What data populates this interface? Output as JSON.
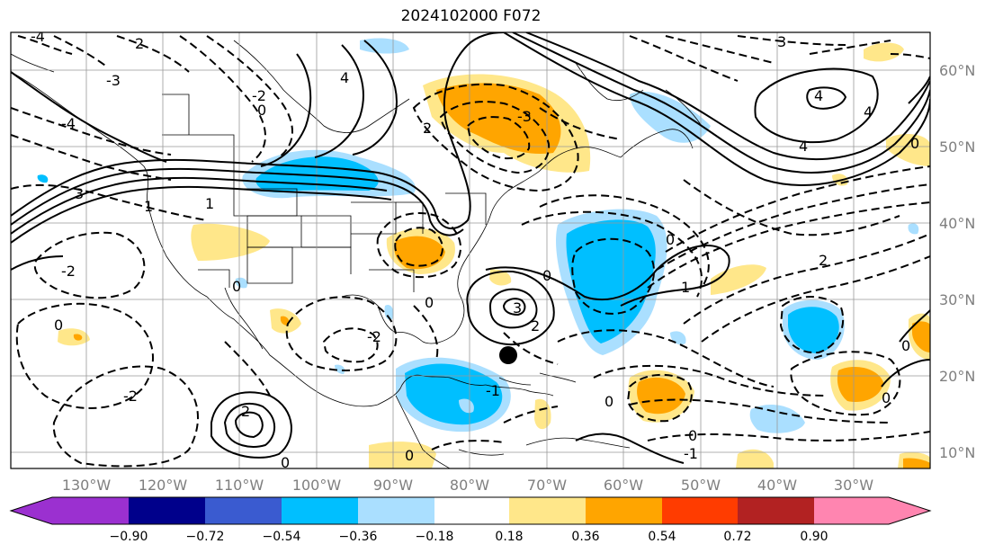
{
  "title": "2024102000 F072",
  "map": {
    "projection": "plate-carree",
    "lon_range": [
      -147,
      12
    ],
    "lat_range": [
      7.5,
      64.5
    ],
    "lat_ticks": [
      {
        "value": 60,
        "label": "60°N"
      },
      {
        "value": 50,
        "label": "50°N"
      },
      {
        "value": 40,
        "label": "40°N"
      },
      {
        "value": 30,
        "label": "30°N"
      },
      {
        "value": 20,
        "label": "20°N"
      },
      {
        "value": 10,
        "label": "10°N"
      }
    ],
    "lon_ticks": [
      {
        "value": -130,
        "label": "130°W"
      },
      {
        "value": -120,
        "label": "120°W"
      },
      {
        "value": -110,
        "label": "110°W"
      },
      {
        "value": -100,
        "label": "100°W"
      },
      {
        "value": -90,
        "label": "90°W"
      },
      {
        "value": -80,
        "label": "80°W"
      },
      {
        "value": -70,
        "label": "70°W"
      },
      {
        "value": -60,
        "label": "60°W"
      },
      {
        "value": -50,
        "label": "50°W"
      },
      {
        "value": -40,
        "label": "40°W"
      },
      {
        "value": -30,
        "label": "30°W"
      }
    ],
    "storm_marker": {
      "lon": -75,
      "lat": 23
    },
    "contour_labels": [
      "0",
      "1",
      "2",
      "3",
      "4",
      "-1",
      "-2",
      "-3",
      "-4"
    ]
  },
  "colorbar": {
    "ticks": [
      "−0.90",
      "−0.72",
      "−0.54",
      "−0.36",
      "−0.18",
      "0.18",
      "0.36",
      "0.54",
      "0.72",
      "0.90"
    ],
    "colors": {
      "under": "#9b30d0",
      "bins": [
        "#00008b",
        "#3a5bd0",
        "#00bfff",
        "#aadfff",
        "#ffffff",
        "#ffe78a",
        "#ffa500",
        "#ff3c00",
        "#b22222"
      ],
      "over": "#ff85b0",
      "below_first": "#9b30d0"
    }
  }
}
